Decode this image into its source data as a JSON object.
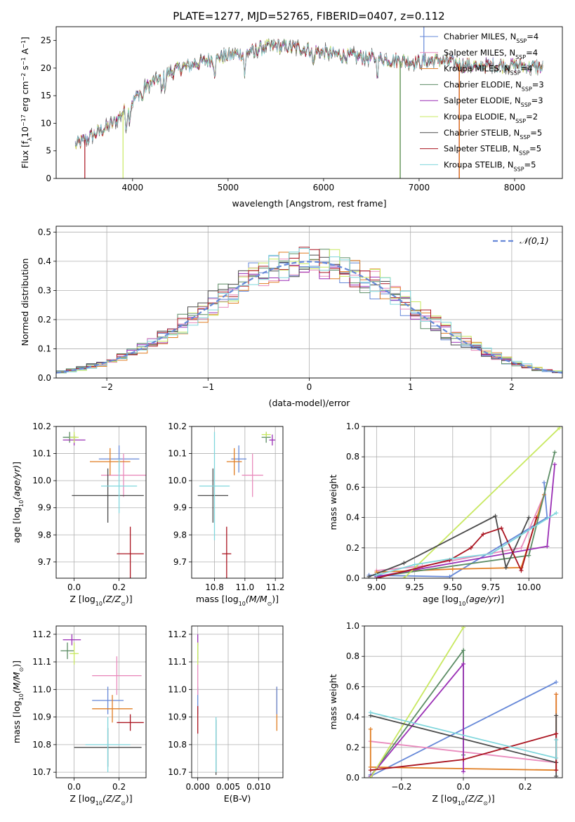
{
  "title": "PLATE=1277, MJD=52765, FIBERID=0407, z=0.112",
  "colors": {
    "Chabrier MILES": "#6688d8",
    "Salpeter MILES": "#e98bbd",
    "Kroupa MILES": "#e07d22",
    "Chabrier ELODIE": "#5b8c64",
    "Salpeter ELODIE": "#9a2fb5",
    "Kroupa ELODIE": "#c8e860",
    "Chabrier STELIB": "#4b4b4b",
    "Salpeter STELIB": "#aa1420",
    "Kroupa STELIB": "#7fd6dc"
  },
  "chart_data": [
    {
      "id": "spectrum",
      "type": "line",
      "xlabel": "wavelength [Angstrom, rest frame]",
      "ylabel": "Flux [f",
      "ylabel_parts": [
        "Flux [f",
        "λ",
        "10",
        "−17",
        " erg cm",
        "−2",
        " s",
        "−1",
        " A",
        "−1",
        "]"
      ],
      "xlim": [
        3200,
        8500
      ],
      "ylim": [
        0,
        27.5
      ],
      "xticks": [
        4000,
        5000,
        6000,
        7000,
        8000
      ],
      "yticks": [
        0,
        5,
        10,
        15,
        20,
        25
      ],
      "grid": false,
      "legend_position": "top-right",
      "legend": [
        {
          "pre": "Chabrier MILES, N",
          "sub": "SSP",
          "post": "=4",
          "series": "Chabrier MILES"
        },
        {
          "pre": "Salpeter MILES, N",
          "sub": "SSP",
          "post": "=4",
          "series": "Salpeter MILES"
        },
        {
          "pre": "Kroupa MILES, N",
          "sub": "SSP",
          "post": "=4",
          "series": "Kroupa MILES"
        },
        {
          "pre": "Chabrier ELODIE, N",
          "sub": "SSP",
          "post": "=3",
          "series": "Chabrier ELODIE"
        },
        {
          "pre": "Salpeter ELODIE, N",
          "sub": "SSP",
          "post": "=3",
          "series": "Salpeter ELODIE"
        },
        {
          "pre": "Kroupa ELODIE, N",
          "sub": "SSP",
          "post": "=2",
          "series": "Kroupa ELODIE"
        },
        {
          "pre": "Chabrier STELIB, N",
          "sub": "SSP",
          "post": "=5",
          "series": "Chabrier STELIB"
        },
        {
          "pre": "Salpeter STELIB, N",
          "sub": "SSP",
          "post": "=5",
          "series": "Salpeter STELIB"
        },
        {
          "pre": "Kroupa STELIB, N",
          "sub": "SSP",
          "post": "=5",
          "series": "Kroupa STELIB"
        }
      ],
      "continuum": {
        "x": [
          3400,
          3600,
          3800,
          3950,
          4100,
          4300,
          4500,
          4700,
          4900,
          5100,
          5300,
          5500,
          5800,
          6100,
          6400,
          6700,
          7000,
          7200,
          7500,
          7800,
          8000,
          8300
        ],
        "y": [
          6,
          8,
          10,
          13,
          16,
          18.5,
          20,
          21,
          22,
          22.5,
          23.5,
          24,
          23.5,
          22.5,
          22,
          21.5,
          21,
          21.5,
          20.5,
          20.5,
          20.5,
          20
        ]
      },
      "absorption_lines": [
        {
          "x": 3934,
          "depth": 3
        },
        {
          "x": 3969,
          "depth": 2.5
        },
        {
          "x": 4101,
          "depth": 2
        },
        {
          "x": 4305,
          "depth": 3
        },
        {
          "x": 4341,
          "depth": 2
        },
        {
          "x": 4861,
          "depth": 2.5
        },
        {
          "x": 5175,
          "depth": 4
        },
        {
          "x": 5270,
          "depth": 1.5
        },
        {
          "x": 5893,
          "depth": 2.5
        },
        {
          "x": 6563,
          "depth": 2.5
        },
        {
          "x": 7620,
          "depth": 1.5
        }
      ],
      "spikes": [
        {
          "x": 3500,
          "to": 0,
          "series": "Salpeter STELIB"
        },
        {
          "x": 3900,
          "to": 0,
          "series": "Kroupa ELODIE"
        },
        {
          "x": 6800,
          "to": 0,
          "series": "Kroupa ELODIE"
        },
        {
          "x": 6803,
          "to": 0,
          "series": "Chabrier ELODIE"
        },
        {
          "x": 7050,
          "to": 27.5,
          "series": "Chabrier MILES"
        },
        {
          "x": 7420,
          "to": 0,
          "series": "Salpeter STELIB"
        },
        {
          "x": 7422,
          "to": 0,
          "series": "Kroupa MILES"
        }
      ]
    },
    {
      "id": "residuals",
      "type": "histogram",
      "xlabel": "(data-model)/error",
      "ylabel": "Normed distribution",
      "xlim": [
        -2.5,
        2.5
      ],
      "ylim": [
        0,
        0.52
      ],
      "xticks": [
        -2,
        -1,
        0,
        1,
        2
      ],
      "yticks": [
        0.0,
        0.1,
        0.2,
        0.3,
        0.4,
        0.5
      ],
      "grid": true,
      "legend_position": "top-right",
      "legend": {
        "label": "𝒩(0,1)",
        "style": "dashed",
        "color": "#6688d8"
      },
      "bin_width": 0.1,
      "series_order": [
        "Chabrier MILES",
        "Salpeter MILES",
        "Kroupa MILES",
        "Chabrier ELODIE",
        "Salpeter ELODIE",
        "Kroupa ELODIE",
        "Chabrier STELIB",
        "Salpeter STELIB",
        "Kroupa STELIB"
      ]
    },
    {
      "id": "age_vs_Z",
      "type": "scatter",
      "xlabel": "Z [log",
      "xlabel_parts": [
        "Z [log",
        "10",
        "(Z/Z",
        "⊙",
        ")]"
      ],
      "ylabel_parts": [
        "age  [log",
        "10",
        "(age/yr)",
        "]"
      ],
      "xlim": [
        -0.08,
        0.32
      ],
      "ylim": [
        9.64,
        10.2
      ],
      "xticks": [
        0.0,
        0.2
      ],
      "yticks": [
        9.7,
        9.8,
        9.9,
        10.0,
        10.1,
        10.2
      ],
      "grid": true,
      "points": [
        {
          "series": "Chabrier MILES",
          "x": 0.2,
          "y": 10.08,
          "xerr": 0.09,
          "yerr": 0.05
        },
        {
          "series": "Salpeter MILES",
          "x": 0.22,
          "y": 10.02,
          "xerr": 0.1,
          "yerr": 0.08
        },
        {
          "series": "Kroupa MILES",
          "x": 0.16,
          "y": 10.07,
          "xerr": 0.09,
          "yerr": 0.05
        },
        {
          "series": "Chabrier ELODIE",
          "x": -0.02,
          "y": 10.16,
          "xerr": 0.03,
          "yerr": 0.02
        },
        {
          "series": "Salpeter ELODIE",
          "x": 0.0,
          "y": 10.15,
          "xerr": 0.05,
          "yerr": 0.02
        },
        {
          "series": "Kroupa ELODIE",
          "x": 0.0,
          "y": 10.16,
          "xerr": 0.02,
          "yerr": 0.02
        },
        {
          "series": "Chabrier STELIB",
          "x": 0.15,
          "y": 9.945,
          "xerr": 0.16,
          "yerr": 0.1
        },
        {
          "series": "Salpeter STELIB",
          "x": 0.25,
          "y": 9.73,
          "xerr": 0.06,
          "yerr": 0.1
        },
        {
          "series": "Kroupa STELIB",
          "x": 0.2,
          "y": 9.98,
          "xerr": 0.08,
          "yerr": 0.1
        }
      ]
    },
    {
      "id": "age_vs_mass",
      "type": "scatter",
      "xlabel_parts": [
        "mass [log",
        "10",
        "(M/M",
        "⊙",
        ")]"
      ],
      "xlim": [
        10.65,
        11.25
      ],
      "ylim": [
        9.64,
        10.2
      ],
      "xticks": [
        10.8,
        11.0,
        11.2
      ],
      "yticks": [
        9.7,
        9.8,
        9.9,
        10.0,
        10.1,
        10.2
      ],
      "grid": true,
      "points": [
        {
          "series": "Chabrier MILES",
          "x": 10.96,
          "y": 10.08,
          "xerr": 0.05,
          "yerr": 0.05
        },
        {
          "series": "Salpeter MILES",
          "x": 11.05,
          "y": 10.02,
          "xerr": 0.07,
          "yerr": 0.08
        },
        {
          "series": "Kroupa MILES",
          "x": 10.93,
          "y": 10.07,
          "xerr": 0.05,
          "yerr": 0.05
        },
        {
          "series": "Chabrier ELODIE",
          "x": 11.14,
          "y": 10.16,
          "xerr": 0.03,
          "yerr": 0.02
        },
        {
          "series": "Salpeter ELODIE",
          "x": 11.18,
          "y": 10.15,
          "xerr": 0.02,
          "yerr": 0.02
        },
        {
          "series": "Kroupa ELODIE",
          "x": 11.14,
          "y": 10.17,
          "xerr": 0.03,
          "yerr": 0.01
        },
        {
          "series": "Chabrier STELIB",
          "x": 10.79,
          "y": 9.945,
          "xerr": 0.1,
          "yerr": 0.1
        },
        {
          "series": "Salpeter STELIB",
          "x": 10.88,
          "y": 9.73,
          "xerr": 0.03,
          "yerr": 0.1
        },
        {
          "series": "Kroupa STELIB",
          "x": 10.8,
          "y": 9.98,
          "xerr": 0.1,
          "yerr": 0.2
        }
      ]
    },
    {
      "id": "mass_weight_vs_age",
      "type": "line",
      "xlabel_parts": [
        "age  [log",
        "10",
        "(age/yr)",
        "]"
      ],
      "ylabel": "mass weight",
      "xlim": [
        8.92,
        10.22
      ],
      "ylim": [
        0,
        1
      ],
      "xticks": [
        9.0,
        9.25,
        9.5,
        9.75,
        10.0
      ],
      "yticks": [
        0.0,
        0.2,
        0.4,
        0.6,
        0.8,
        1.0
      ],
      "grid": true,
      "series": [
        {
          "name": "Chabrier MILES",
          "x": [
            8.95,
            9.48,
            10.12,
            10.1
          ],
          "y": [
            0.02,
            0.01,
            0.4,
            0.63
          ]
        },
        {
          "name": "Salpeter MILES",
          "x": [
            9.0,
            9.3,
            9.95,
            10.1
          ],
          "y": [
            0.05,
            0.08,
            0.2,
            0.55
          ]
        },
        {
          "name": "Kroupa MILES",
          "x": [
            9.0,
            9.5,
            9.95,
            10.1
          ],
          "y": [
            0.04,
            0.06,
            0.07,
            0.55
          ]
        },
        {
          "name": "Chabrier ELODIE",
          "x": [
            9.0,
            10.0,
            10.17
          ],
          "y": [
            0.01,
            0.15,
            0.83
          ]
        },
        {
          "name": "Salpeter ELODIE",
          "x": [
            9.0,
            10.12,
            10.17
          ],
          "y": [
            0.01,
            0.21,
            0.75
          ]
        },
        {
          "name": "Kroupa ELODIE",
          "x": [
            9.18,
            10.2
          ],
          "y": [
            0.0,
            0.99
          ]
        },
        {
          "name": "Chabrier STELIB",
          "x": [
            8.95,
            9.18,
            9.78,
            9.85,
            10.0
          ],
          "y": [
            0.01,
            0.1,
            0.41,
            0.07,
            0.4
          ]
        },
        {
          "name": "Salpeter STELIB",
          "x": [
            9.0,
            9.48,
            9.62,
            9.7,
            9.82,
            9.95,
            10.05
          ],
          "y": [
            0.0,
            0.12,
            0.2,
            0.29,
            0.33,
            0.05,
            0.4
          ]
        },
        {
          "name": "Kroupa STELIB",
          "x": [
            9.0,
            9.25,
            9.5,
            9.75,
            10.18
          ],
          "y": [
            0.02,
            0.09,
            0.13,
            0.16,
            0.43
          ]
        }
      ]
    },
    {
      "id": "mass_vs_Z",
      "type": "scatter",
      "xlabel_parts": [
        "Z [log",
        "10",
        "(Z/Z",
        "⊙",
        ")]"
      ],
      "ylabel_parts": [
        "mass [log",
        "10",
        "(M/M",
        "⊙",
        ")]"
      ],
      "xlim": [
        -0.08,
        0.32
      ],
      "ylim": [
        10.68,
        11.23
      ],
      "xticks": [
        0.0,
        0.2
      ],
      "yticks": [
        10.7,
        10.8,
        10.9,
        11.0,
        11.1,
        11.2
      ],
      "grid": true,
      "points": [
        {
          "series": "Chabrier MILES",
          "x": 0.15,
          "y": 10.96,
          "xerr": 0.07,
          "yerr": 0.05
        },
        {
          "series": "Salpeter MILES",
          "x": 0.19,
          "y": 11.05,
          "xerr": 0.11,
          "yerr": 0.07
        },
        {
          "series": "Kroupa MILES",
          "x": 0.17,
          "y": 10.93,
          "xerr": 0.09,
          "yerr": 0.05
        },
        {
          "series": "Chabrier ELODIE",
          "x": -0.03,
          "y": 11.14,
          "xerr": 0.03,
          "yerr": 0.03
        },
        {
          "series": "Salpeter ELODIE",
          "x": -0.01,
          "y": 11.18,
          "xerr": 0.04,
          "yerr": 0.02
        },
        {
          "series": "Kroupa ELODIE",
          "x": 0.0,
          "y": 11.13,
          "xerr": 0.02,
          "yerr": 0.04
        },
        {
          "series": "Chabrier STELIB",
          "x": 0.15,
          "y": 10.79,
          "xerr": 0.15,
          "yerr": 0.07
        },
        {
          "series": "Salpeter STELIB",
          "x": 0.25,
          "y": 10.88,
          "xerr": 0.06,
          "yerr": 0.03
        },
        {
          "series": "Kroupa STELIB",
          "x": 0.15,
          "y": 10.8,
          "xerr": 0.1,
          "yerr": 0.1
        }
      ]
    },
    {
      "id": "mass_vs_ebv",
      "type": "scatter",
      "xlabel": "E(B-V)",
      "xlim": [
        -0.001,
        0.014
      ],
      "ylim": [
        10.68,
        11.23
      ],
      "xticks": [
        0.0,
        0.005,
        0.01
      ],
      "xticklabels": [
        "0.000",
        "0.005",
        "0.010"
      ],
      "yticks": [
        10.7,
        10.8,
        10.9,
        11.0,
        11.1,
        11.2
      ],
      "grid": true,
      "points": [
        {
          "series": "Chabrier MILES",
          "x": 0.0,
          "y": 10.96,
          "xerr": 0,
          "yerr": 0.05
        },
        {
          "series": "Salpeter MILES",
          "x": 0.0,
          "y": 11.05,
          "xerr": 0,
          "yerr": 0.07
        },
        {
          "series": "Kroupa MILES",
          "x": 0.013,
          "y": 10.93,
          "xerr": 0,
          "yerr": 0.08
        },
        {
          "series": "Chabrier ELODIE",
          "x": 0.0,
          "y": 11.14,
          "xerr": 0,
          "yerr": 0.03
        },
        {
          "series": "Salpeter ELODIE",
          "x": 0.0,
          "y": 11.18,
          "xerr": 0,
          "yerr": 0.02
        },
        {
          "series": "Kroupa ELODIE",
          "x": 0.0,
          "y": 11.13,
          "xerr": 0,
          "yerr": 0.04
        },
        {
          "series": "Chabrier STELIB",
          "x": 0.003,
          "y": 10.79,
          "xerr": 0,
          "yerr": 0.1
        },
        {
          "series": "Salpeter STELIB",
          "x": 0.0,
          "y": 10.89,
          "xerr": 0,
          "yerr": 0.05
        },
        {
          "series": "Kroupa STELIB",
          "x": 0.003,
          "y": 10.8,
          "xerr": 0,
          "yerr": 0.1
        },
        {
          "series": "Chabrier MILES",
          "x": 0.013,
          "y": 10.96,
          "xerr": 0,
          "yerr": 0.05
        }
      ]
    },
    {
      "id": "mass_weight_vs_Z",
      "type": "line",
      "xlabel_parts": [
        "Z [log",
        "10",
        "(Z/Z",
        "⊙",
        ")]"
      ],
      "ylabel": "mass weight",
      "xlim": [
        -0.32,
        0.32
      ],
      "ylim": [
        0,
        1
      ],
      "xticks": [
        -0.2,
        0.0,
        0.2
      ],
      "yticks": [
        0.0,
        0.2,
        0.4,
        0.6,
        0.8,
        1.0
      ],
      "grid": true,
      "series": [
        {
          "name": "Chabrier MILES",
          "x": [
            -0.3,
            -0.3,
            0.3
          ],
          "y": [
            0.02,
            0.01,
            0.63
          ]
        },
        {
          "name": "Salpeter MILES",
          "x": [
            -0.3,
            0.3,
            0.3
          ],
          "y": [
            0.24,
            0.1,
            0.55
          ]
        },
        {
          "name": "Kroupa MILES",
          "x": [
            -0.3,
            -0.3,
            0.3,
            0.3
          ],
          "y": [
            0.32,
            0.07,
            0.05,
            0.55
          ]
        },
        {
          "name": "Chabrier ELODIE",
          "x": [
            -0.3,
            0.0,
            0.0
          ],
          "y": [
            0.01,
            0.84,
            0.15
          ]
        },
        {
          "name": "Salpeter ELODIE",
          "x": [
            -0.3,
            0.0,
            0.0
          ],
          "y": [
            0.01,
            0.75,
            0.04
          ]
        },
        {
          "name": "Kroupa ELODIE",
          "x": [
            -0.3,
            0.0
          ],
          "y": [
            0.0,
            0.99
          ]
        },
        {
          "name": "Chabrier STELIB",
          "x": [
            -0.3,
            0.3,
            0.3,
            0.3
          ],
          "y": [
            0.41,
            0.1,
            0.41,
            0.01
          ]
        },
        {
          "name": "Salpeter STELIB",
          "x": [
            -0.3,
            0.0,
            0.3,
            0.3
          ],
          "y": [
            0.05,
            0.12,
            0.29,
            0.05
          ]
        },
        {
          "name": "Kroupa STELIB",
          "x": [
            -0.3,
            0.3,
            0.3
          ],
          "y": [
            0.43,
            0.13,
            0.25
          ]
        }
      ]
    }
  ]
}
